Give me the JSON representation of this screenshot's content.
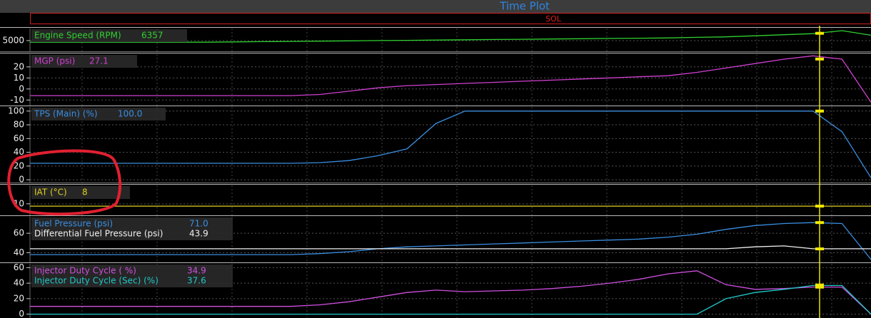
{
  "window_title": "Time Plot",
  "status": "SOL",
  "chart_data": [
    {
      "type": "line",
      "ylim": [
        3000,
        7250
      ],
      "yticks": [
        5000
      ],
      "series": [
        {
          "name": "Engine Speed (RPM)",
          "color": "#30d030",
          "readout": 6357,
          "values": [
            4700,
            4700,
            4700,
            4700,
            4700,
            4700,
            4700,
            4750,
            4800,
            4850,
            4900,
            4950,
            5000,
            5050,
            5100,
            5150,
            5200,
            5250,
            5300,
            5350,
            5400,
            5450,
            5500,
            5600,
            5700,
            5900,
            6100,
            6300,
            6850,
            6000
          ]
        }
      ]
    },
    {
      "type": "line",
      "ylim": [
        -15,
        31.5
      ],
      "yticks": [
        20,
        10,
        0,
        -10
      ],
      "series": [
        {
          "name": "MGP (psi)",
          "color": "#d040d0",
          "readout": 27.1,
          "values": [
            -6,
            -6,
            -6,
            -6,
            -6,
            -6,
            -6,
            -6,
            -6,
            -6,
            -5,
            -2,
            1,
            3,
            4,
            5,
            6,
            7,
            8,
            9,
            10,
            11,
            12,
            15,
            19,
            23,
            27,
            30,
            27,
            -12
          ]
        }
      ]
    },
    {
      "type": "line",
      "ylim": [
        -4,
        106
      ],
      "yticks": [
        100,
        80,
        60,
        40,
        20,
        0
      ],
      "series": [
        {
          "name": "TPS (Main) (%)",
          "color": "#3a8ee0",
          "readout": {
            "value": 100,
            "label": "100.0"
          },
          "values": [
            24,
            24,
            24,
            24,
            24,
            24,
            24,
            24,
            24,
            24,
            25,
            28,
            35,
            45,
            82,
            100,
            100,
            100,
            100,
            100,
            100,
            100,
            100,
            100,
            100,
            100,
            100,
            100,
            70,
            3
          ]
        }
      ]
    },
    {
      "type": "line",
      "ylim": [
        0,
        26
      ],
      "yticks": [
        10
      ],
      "series": [
        {
          "name": "IAT (°C)",
          "color": "#e0d020",
          "readout": 8,
          "values": [
            8,
            8,
            8,
            8,
            8,
            8,
            8,
            8,
            8,
            8,
            8,
            8,
            8,
            8,
            8,
            8,
            8,
            8,
            8,
            8,
            8,
            8,
            8,
            8,
            8,
            8,
            8,
            8,
            8,
            8
          ]
        }
      ]
    },
    {
      "type": "line",
      "ylim": [
        30,
        77
      ],
      "yticks": [
        60,
        40
      ],
      "series": [
        {
          "name": "Fuel Pressure (psi)",
          "color": "#3a8ee0",
          "readout": {
            "value": 71,
            "label": "71.0"
          },
          "values": [
            38,
            38,
            38,
            38,
            38,
            38,
            38,
            38,
            38,
            38,
            39,
            41,
            44,
            46,
            47,
            48,
            49,
            50,
            51,
            52,
            53,
            54,
            56,
            59,
            64,
            68,
            70,
            71,
            70,
            33
          ]
        },
        {
          "name": "Differential Fuel Pressure (psi)",
          "color": "#f0f0f0",
          "readout": 43.9,
          "values": [
            44,
            44,
            44,
            44,
            44,
            44,
            44,
            44,
            44,
            44,
            44,
            44,
            44,
            44,
            44,
            44,
            44,
            44,
            44,
            44,
            44,
            44,
            44,
            44,
            44,
            46,
            47,
            44,
            44,
            44
          ]
        }
      ]
    },
    {
      "type": "line",
      "ylim": [
        -5,
        65
      ],
      "yticks": [
        60,
        40,
        20,
        0
      ],
      "series": [
        {
          "name": "Injector Duty Cycle ( %)",
          "color": "#d050e0",
          "readout": 34.9,
          "values": [
            10,
            10,
            10,
            10,
            10,
            10,
            10,
            10,
            10,
            10,
            12,
            16,
            22,
            28,
            31,
            29,
            30,
            31,
            33,
            36,
            40,
            45,
            52,
            56,
            38,
            32,
            33,
            35,
            35,
            0
          ]
        },
        {
          "name": "Injector Duty Cycle (Sec) (%)",
          "color": "#20c8c8",
          "readout": 37.6,
          "values": [
            0,
            0,
            0,
            0,
            0,
            0,
            0,
            0,
            0,
            0,
            0,
            0,
            0,
            0,
            0,
            0,
            0,
            0,
            0,
            0,
            0,
            0,
            0,
            0,
            20,
            28,
            32,
            37,
            37,
            0
          ]
        }
      ]
    }
  ]
}
